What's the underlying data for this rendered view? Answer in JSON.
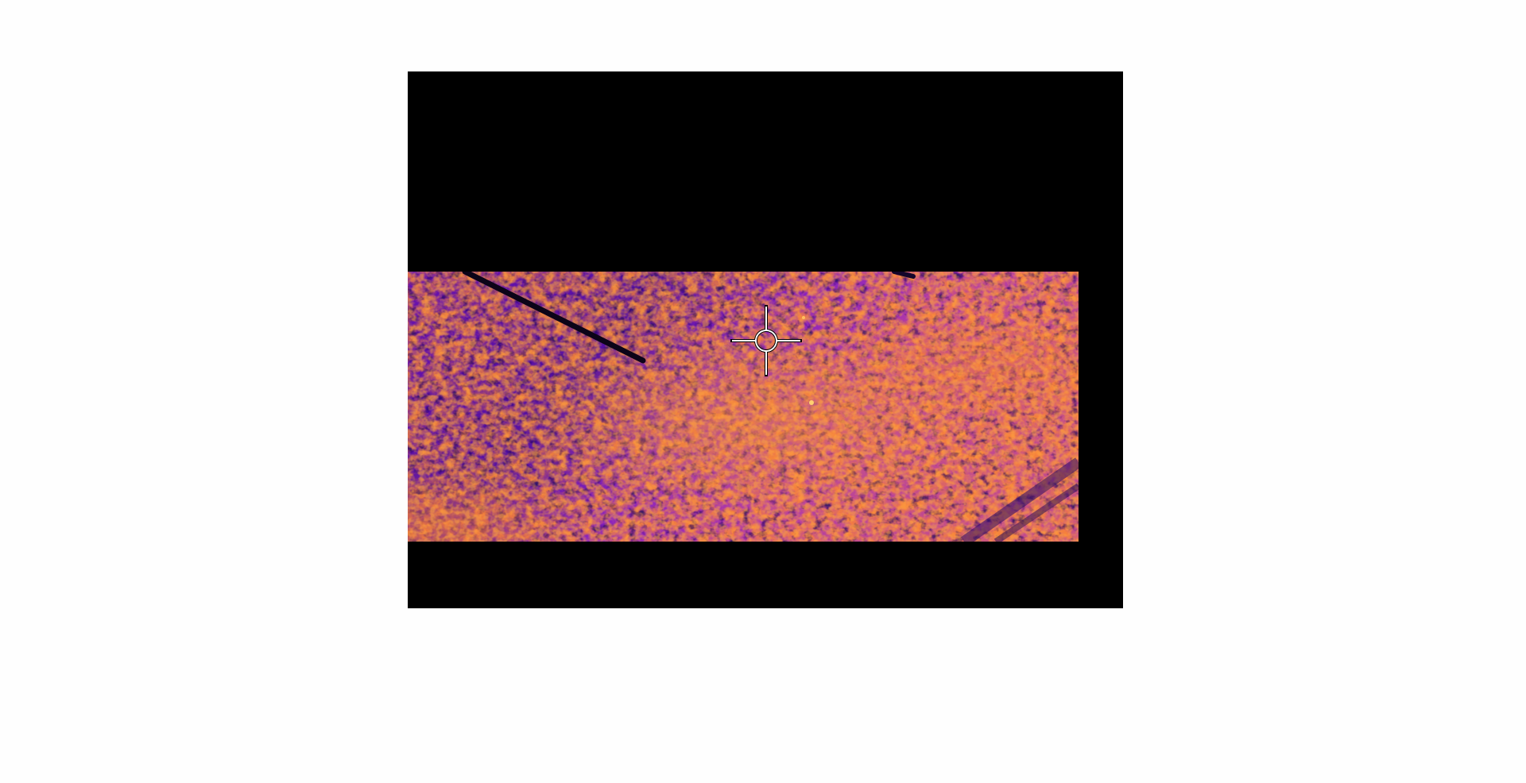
{
  "viewer": {
    "background_color": "#000000",
    "palette_name": "ironbow",
    "palette_colors": [
      "#16003a",
      "#3b0478",
      "#6a10b0",
      "#a52bd0",
      "#d8459a",
      "#f5793e",
      "#ffb248",
      "#fff2a8"
    ]
  },
  "reticle": {
    "icon": "crosshair-icon",
    "stroke_color": "#ffffff",
    "outline_color": "#000000"
  }
}
